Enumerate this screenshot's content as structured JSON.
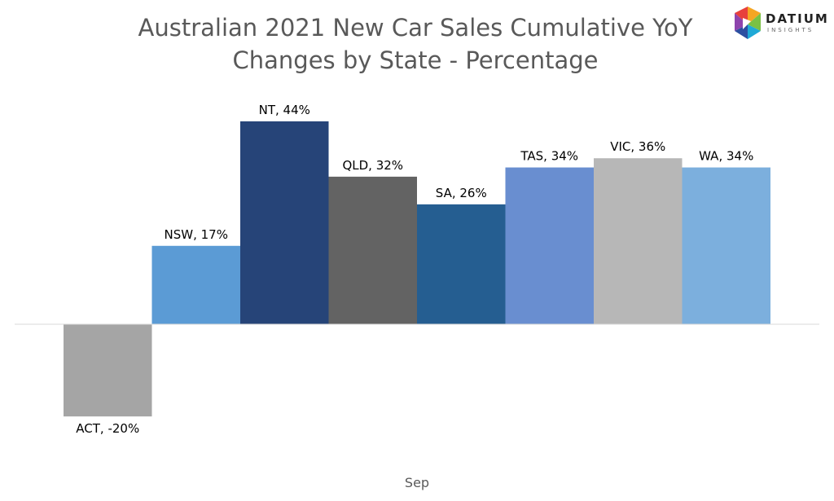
{
  "title_lines": [
    "Australian 2021 New Car Sales Cumulative YoY",
    "Changes by State - Percentage"
  ],
  "logo": {
    "word": "DATIUM",
    "sub": "INSIGHTS"
  },
  "chart_data": {
    "type": "bar",
    "title": "Australian 2021 New Car Sales Cumulative YoY Changes by State - Percentage",
    "xlabel": "Sep",
    "ylabel": "",
    "categories": [
      "ACT",
      "NSW",
      "NT",
      "QLD",
      "SA",
      "TAS",
      "VIC",
      "WA"
    ],
    "values": [
      -20,
      17,
      44,
      32,
      26,
      34,
      36,
      34
    ],
    "data_labels": [
      "ACT, -20%",
      "NSW, 17%",
      "NT, 44%",
      "QLD, 32%",
      "SA, 26%",
      "TAS, 34%",
      "VIC, 36%",
      "WA, 34%"
    ],
    "colors": [
      "#a5a5a5",
      "#5b9bd5",
      "#264478",
      "#636363",
      "#255e91",
      "#698ed0",
      "#b7b7b7",
      "#7cafdd"
    ],
    "grid": false,
    "legend": "none"
  }
}
